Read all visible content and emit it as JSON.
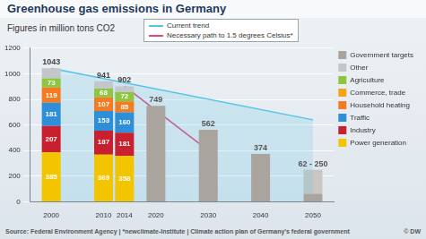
{
  "chart_data": {
    "type": "bar",
    "title": "Greenhouse gas emissions in Germany",
    "subtitle": "Figures in million tons CO2",
    "source": "Source: Federal Environment Agency | *newclimate-Institute | Climate action plan of Germany's federal government",
    "credit": "© DW",
    "x": [
      2000,
      2010,
      2014,
      2020,
      2030,
      2040,
      2050
    ],
    "xlim": [
      1996,
      2054
    ],
    "xticks": [
      2000,
      2010,
      2014,
      2020,
      2030,
      2040,
      2050
    ],
    "ylim": [
      0,
      1200
    ],
    "yticks": [
      0,
      200,
      400,
      600,
      800,
      1000,
      1200
    ],
    "grid": true,
    "stacked": true,
    "data_labels": true,
    "legend": "right",
    "totals": [
      1043,
      941,
      902,
      null,
      null,
      null,
      null
    ],
    "series": [
      {
        "name": "Power generation",
        "color": "#f2c500",
        "values": [
          385,
          369,
          358,
          null,
          null,
          null,
          null
        ]
      },
      {
        "name": "Industry",
        "color": "#c9202f",
        "values": [
          207,
          187,
          181,
          null,
          null,
          null,
          null
        ]
      },
      {
        "name": "Traffic",
        "color": "#2e8fd8",
        "values": [
          181,
          153,
          160,
          null,
          null,
          null,
          null
        ]
      },
      {
        "name": "Household heating",
        "color": "#f47b20",
        "values": [
          119,
          107,
          85,
          null,
          null,
          null,
          null
        ]
      },
      {
        "name": "Commerce, trade",
        "color": "#f7a21b",
        "values": [
          null,
          null,
          null,
          null,
          null,
          null,
          null
        ]
      },
      {
        "name": "Agriculture",
        "color": "#8dc63f",
        "values": [
          73,
          68,
          72,
          null,
          null,
          null,
          null
        ]
      },
      {
        "name": "Other",
        "color": "#c3c7cc",
        "values": [
          78,
          57,
          46,
          null,
          null,
          null,
          null
        ],
        "value_labels": [
          null,
          null,
          null,
          null,
          null,
          null,
          null
        ]
      },
      {
        "name": "Government targets",
        "color": "#aaa49e",
        "values": [
          null,
          null,
          null,
          749,
          562,
          374,
          62
        ],
        "value_labels": [
          null,
          null,
          null,
          "749",
          "562",
          "374",
          "62 - 250"
        ],
        "ranges": [
          null,
          null,
          null,
          null,
          null,
          null,
          [
            62,
            250
          ]
        ]
      },
      {
        "name": "Current trend",
        "type": "line",
        "color": "#4fc3e8",
        "x": [
          2000,
          2050
        ],
        "values": [
          1043,
          640
        ]
      },
      {
        "name": "Necessary path to 1.5 degrees Celsius*",
        "type": "line",
        "color": "#e0457b",
        "x": [
          2014,
          2030
        ],
        "values": [
          902,
          400
        ]
      }
    ]
  }
}
